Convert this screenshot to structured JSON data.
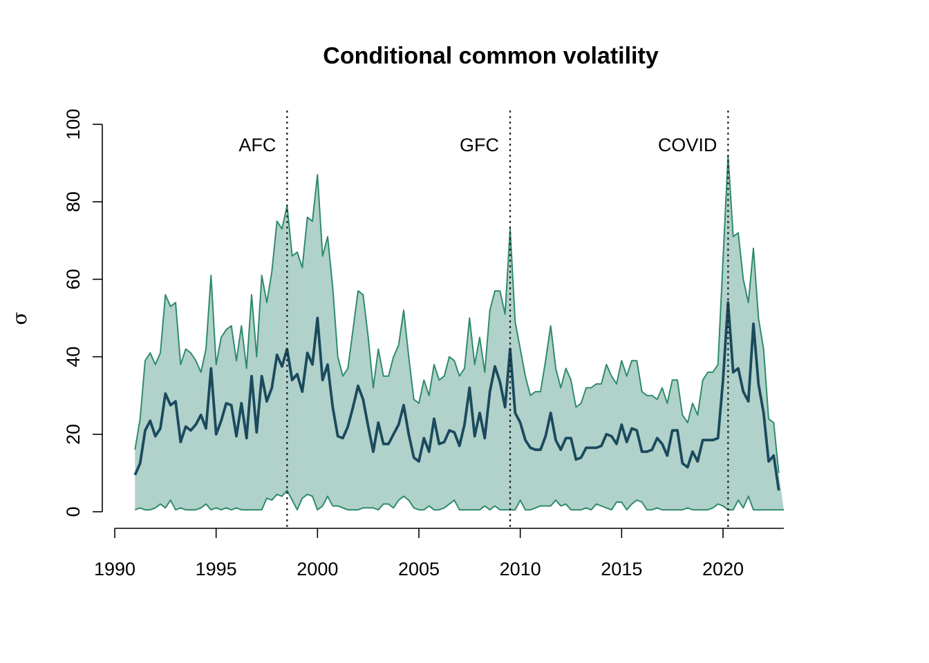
{
  "chart_data": {
    "type": "area",
    "title": "Conditional common volatility",
    "xlabel": "",
    "ylabel": "σ",
    "xlim": [
      1990,
      2023
    ],
    "ylim": [
      0,
      100
    ],
    "xticks": [
      1990,
      1995,
      2000,
      2005,
      2010,
      2015,
      2020
    ],
    "yticks": [
      0,
      20,
      40,
      60,
      80,
      100
    ],
    "grid": false,
    "colors": {
      "band_fill": "#b1d1cb",
      "band_edge": "#2e8b6a",
      "median_line": "#1a4a5c",
      "event_line": "#222222"
    },
    "events": [
      {
        "label": "AFC",
        "x": 1998.5
      },
      {
        "label": "GFC",
        "x": 2009.5
      },
      {
        "label": "COVID",
        "x": 2020.25
      }
    ],
    "x_start": 1991.0,
    "x_step": 0.25,
    "series": [
      {
        "role": "upper",
        "values": [
          16,
          24,
          39,
          41,
          38,
          41,
          56,
          53,
          54,
          38,
          42,
          41,
          39,
          36,
          42,
          61,
          38,
          45,
          47,
          48,
          39,
          48,
          37,
          56,
          40,
          61,
          54,
          62,
          75,
          73,
          79,
          66,
          67,
          63,
          76,
          75,
          87,
          66,
          71,
          58,
          40,
          35,
          37,
          47,
          57,
          56,
          45,
          32,
          42,
          35,
          35,
          40,
          43,
          52,
          40,
          29,
          28,
          34,
          30,
          38,
          34,
          35,
          40,
          39,
          35,
          37,
          50,
          38,
          45,
          36,
          52,
          57,
          57,
          51,
          73,
          49,
          42,
          35,
          30,
          31,
          31,
          39,
          48,
          37,
          32,
          37,
          34,
          27,
          28,
          32,
          32,
          33,
          33,
          38,
          35,
          33,
          39,
          35,
          39,
          39,
          31,
          30,
          30,
          29,
          32,
          28,
          34,
          34,
          25,
          23,
          28,
          25,
          34,
          36,
          36,
          38,
          65,
          92,
          71,
          72,
          60,
          54,
          68,
          50,
          42,
          24,
          23,
          10
        ]
      },
      {
        "role": "median",
        "values": [
          9.5,
          12.5,
          21,
          23.5,
          19.5,
          21.5,
          30.5,
          27.5,
          28.5,
          18,
          22,
          21,
          22.5,
          25,
          21.5,
          37,
          20,
          23.5,
          28,
          27.5,
          19.5,
          28,
          19,
          35,
          20.5,
          35,
          28.5,
          32,
          40.5,
          37.5,
          42,
          34,
          35.5,
          31,
          41,
          38,
          50,
          34,
          38,
          27,
          19.5,
          19,
          22,
          27,
          32.5,
          29,
          22,
          15.5,
          23,
          17.5,
          17.5,
          20,
          22.5,
          27.5,
          20,
          14,
          13,
          19,
          15.5,
          24,
          17.5,
          18,
          21,
          20.5,
          17,
          22.5,
          32,
          19.5,
          25.5,
          19,
          31,
          37.5,
          33.5,
          27,
          42,
          25.5,
          23,
          18.5,
          16.5,
          16,
          16,
          19.5,
          25.5,
          18.5,
          16,
          19,
          19,
          13.5,
          14,
          16.5,
          16.5,
          16.5,
          17,
          20,
          19.5,
          17.5,
          22.5,
          18,
          21.5,
          21,
          15.5,
          15.5,
          16,
          19,
          17.5,
          14.5,
          21,
          21,
          12.5,
          11.5,
          15.5,
          13,
          18.5,
          18.5,
          18.5,
          19,
          34,
          54,
          36,
          37,
          31,
          28.5,
          48.5,
          33,
          25.5,
          13,
          14.5,
          5.5
        ]
      },
      {
        "role": "lower",
        "values": [
          0.5,
          1,
          0.5,
          0.5,
          1,
          2,
          1,
          3,
          0.5,
          1,
          0.5,
          0.5,
          0.5,
          1,
          2,
          0.5,
          1,
          0.5,
          1,
          0.5,
          1,
          0.5,
          0.5,
          0.5,
          0.5,
          0.5,
          3.5,
          3,
          4.5,
          4,
          5.5,
          3,
          0.5,
          3.5,
          4.5,
          4,
          0.5,
          1.5,
          4,
          1.5,
          1.5,
          1,
          0.5,
          0.5,
          0.5,
          1,
          1,
          1,
          0.5,
          2,
          2,
          1,
          3,
          4,
          3,
          1,
          0.5,
          0.5,
          1.5,
          0.5,
          0.5,
          1,
          2,
          3,
          0.5,
          0.5,
          0.5,
          0.5,
          0.5,
          1.5,
          0.5,
          1.5,
          0.5,
          0.5,
          0.5,
          0.5,
          3,
          0.5,
          0.5,
          1,
          1.5,
          1.5,
          1.5,
          3,
          1.5,
          2,
          0.5,
          0.5,
          0.5,
          1,
          0.5,
          2,
          1.5,
          1,
          0.5,
          2.5,
          2.5,
          0.5,
          2,
          3,
          2.5,
          0.5,
          0.5,
          1,
          0.5,
          0.5,
          0.5,
          0.5,
          0.5,
          1,
          0.5,
          0.5,
          0.5,
          0.5,
          1,
          2,
          1.5,
          0.5,
          0.5,
          3,
          1,
          4,
          0.5,
          0.5,
          0.5,
          0.5,
          0.5,
          0.5,
          0.5
        ]
      }
    ]
  }
}
